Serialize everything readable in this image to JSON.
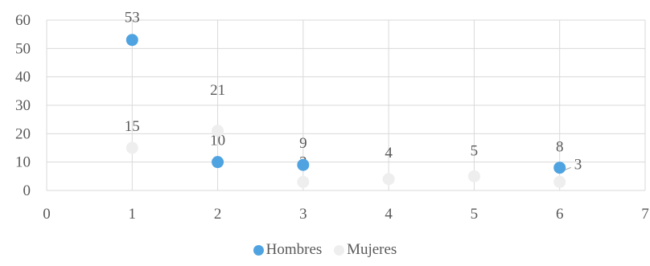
{
  "chart_data": {
    "type": "scatter",
    "title": "",
    "xlabel": "",
    "ylabel": "",
    "xlim": [
      0,
      7
    ],
    "ylim": [
      0,
      60
    ],
    "xticks": [
      0,
      1,
      2,
      3,
      4,
      5,
      6,
      7
    ],
    "yticks": [
      0,
      10,
      20,
      30,
      40,
      50,
      60
    ],
    "grid": true,
    "legend_position": "bottom",
    "series": [
      {
        "name": "Hombres",
        "color": "#4ea3e0",
        "points": [
          {
            "x": 1,
            "y": 53,
            "label": "53"
          },
          {
            "x": 2,
            "y": 10,
            "label": "10"
          },
          {
            "x": 3,
            "y": 9,
            "label": "9"
          },
          {
            "x": 6,
            "y": 8,
            "label": "8"
          }
        ]
      },
      {
        "name": "Mujeres",
        "color": "#eeeeee",
        "points": [
          {
            "x": 1,
            "y": 15,
            "label": "15"
          },
          {
            "x": 2,
            "y": 21,
            "label": "21"
          },
          {
            "x": 3,
            "y": 3,
            "label": "3"
          },
          {
            "x": 4,
            "y": 4,
            "label": "4"
          },
          {
            "x": 5,
            "y": 5,
            "label": "5"
          },
          {
            "x": 6,
            "y": 3,
            "label": "3"
          }
        ]
      }
    ]
  }
}
